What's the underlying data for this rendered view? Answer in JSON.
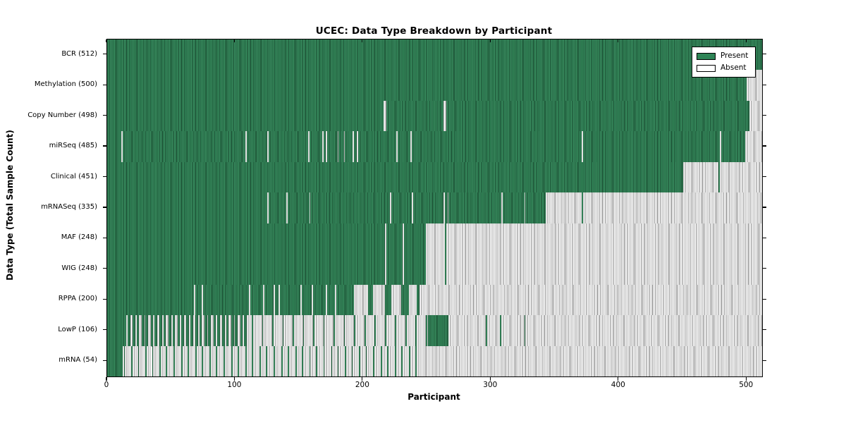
{
  "chart_data": {
    "type": "heatmap",
    "title": "UCEC: Data Type Breakdown by Participant",
    "xlabel": "Participant",
    "ylabel": "Data Type (Total Sample Count)",
    "x_ticks": [
      0,
      100,
      200,
      300,
      400,
      500
    ],
    "x_max": 512,
    "grid": false,
    "legend_position": "upper right",
    "legend": [
      {
        "label": "Present",
        "color": "#2e8456"
      },
      {
        "label": "Absent",
        "color": "#ffffff"
      }
    ],
    "colors": {
      "present_fill": "#2e8456",
      "present_edge": "#16432b",
      "absent_fill": "#ffffff",
      "absent_edge": "#7c7c7c",
      "frame": "#000000"
    },
    "rows": [
      {
        "label": "BCR",
        "total": 512,
        "display": "BCR (512)",
        "absent": []
      },
      {
        "label": "Methylation",
        "total": 500,
        "display": "Methylation (500)",
        "absent": [
          [
            500,
            512
          ]
        ]
      },
      {
        "label": "Copy Number",
        "total": 498,
        "display": "Copy Number (498)",
        "absent": [
          [
            216,
            218
          ],
          [
            263,
            265
          ],
          [
            502,
            512
          ]
        ]
      },
      {
        "label": "miRSeq",
        "total": 485,
        "display": "miRSeq (485)",
        "absent": [
          [
            11,
            12
          ],
          [
            108,
            109
          ],
          [
            125,
            126
          ],
          [
            157,
            158
          ],
          [
            168,
            169
          ],
          [
            171,
            172
          ],
          [
            180,
            181
          ],
          [
            185,
            186
          ],
          [
            192,
            193
          ],
          [
            195,
            196
          ],
          [
            226,
            227
          ],
          [
            237,
            238
          ],
          [
            371,
            372
          ],
          [
            479,
            480
          ],
          [
            499,
            512
          ]
        ]
      },
      {
        "label": "Clinical",
        "total": 451,
        "display": "Clinical (451)",
        "absent": [
          [
            450,
            478
          ],
          [
            479,
            512
          ]
        ]
      },
      {
        "label": "mRNASeq",
        "total": 335,
        "display": "mRNASeq (335)",
        "absent": [
          [
            125,
            126
          ],
          [
            140,
            141
          ],
          [
            158,
            159
          ],
          [
            221,
            222
          ],
          [
            238,
            239
          ],
          [
            263,
            264
          ],
          [
            266,
            267
          ],
          [
            308,
            309
          ],
          [
            326,
            327
          ],
          [
            343,
            371
          ],
          [
            372,
            512
          ]
        ]
      },
      {
        "label": "MAF",
        "total": 248,
        "display": "MAF (248)",
        "absent": [
          [
            217,
            218
          ],
          [
            231,
            232
          ],
          [
            249,
            264
          ],
          [
            265,
            512
          ]
        ]
      },
      {
        "label": "WIG",
        "total": 248,
        "display": "WIG (248)",
        "absent": [
          [
            217,
            218
          ],
          [
            231,
            232
          ],
          [
            249,
            264
          ],
          [
            265,
            512
          ]
        ]
      },
      {
        "label": "RPPA",
        "total": 200,
        "display": "RPPA (200)",
        "present": [
          [
            0,
            68
          ],
          [
            69,
            74
          ],
          [
            75,
            111
          ],
          [
            112,
            122
          ],
          [
            123,
            130
          ],
          [
            131,
            134
          ],
          [
            135,
            151
          ],
          [
            152,
            160
          ],
          [
            161,
            171
          ],
          [
            172,
            178
          ],
          [
            179,
            193
          ],
          [
            204,
            208
          ],
          [
            217,
            222
          ],
          [
            230,
            236
          ],
          [
            242,
            244
          ]
        ]
      },
      {
        "label": "LowP",
        "total": 106,
        "display": "LowP (106)",
        "present": [
          [
            0,
            15
          ],
          [
            16,
            18
          ],
          [
            20,
            22
          ],
          [
            23,
            25
          ],
          [
            27,
            29
          ],
          [
            30,
            32
          ],
          [
            34,
            36
          ],
          [
            37,
            39
          ],
          [
            41,
            43
          ],
          [
            44,
            46
          ],
          [
            48,
            50
          ],
          [
            51,
            53
          ],
          [
            55,
            57
          ],
          [
            58,
            60
          ],
          [
            62,
            64
          ],
          [
            65,
            67
          ],
          [
            69,
            71
          ],
          [
            72,
            74
          ],
          [
            76,
            78
          ],
          [
            79,
            81
          ],
          [
            83,
            85
          ],
          [
            86,
            88
          ],
          [
            90,
            92
          ],
          [
            93,
            95
          ],
          [
            97,
            99
          ],
          [
            100,
            102
          ],
          [
            104,
            106
          ],
          [
            107,
            109
          ],
          [
            113,
            114
          ],
          [
            121,
            122
          ],
          [
            129,
            130
          ],
          [
            137,
            138
          ],
          [
            145,
            146
          ],
          [
            153,
            154
          ],
          [
            161,
            162
          ],
          [
            169,
            170
          ],
          [
            177,
            178
          ],
          [
            185,
            186
          ],
          [
            193,
            194
          ],
          [
            201,
            202
          ],
          [
            209,
            210
          ],
          [
            217,
            218
          ],
          [
            225,
            226
          ],
          [
            233,
            234
          ],
          [
            241,
            242
          ],
          [
            249,
            250
          ],
          [
            251,
            267
          ],
          [
            296,
            297
          ],
          [
            307,
            308
          ],
          [
            326,
            327
          ]
        ]
      },
      {
        "label": "mRNA",
        "total": 54,
        "display": "mRNA (54)",
        "present": [
          [
            0,
            12
          ],
          [
            13,
            14
          ],
          [
            19,
            20
          ],
          [
            24,
            25
          ],
          [
            30,
            31
          ],
          [
            35,
            36
          ],
          [
            41,
            42
          ],
          [
            46,
            47
          ],
          [
            52,
            53
          ],
          [
            58,
            59
          ],
          [
            63,
            64
          ],
          [
            69,
            70
          ],
          [
            74,
            75
          ],
          [
            80,
            81
          ],
          [
            85,
            86
          ],
          [
            91,
            92
          ],
          [
            97,
            98
          ],
          [
            102,
            103
          ],
          [
            108,
            109
          ],
          [
            113,
            114
          ],
          [
            119,
            120
          ],
          [
            124,
            125
          ],
          [
            130,
            131
          ],
          [
            136,
            137
          ],
          [
            141,
            142
          ],
          [
            147,
            148
          ],
          [
            152,
            153
          ],
          [
            158,
            159
          ],
          [
            163,
            164
          ],
          [
            169,
            170
          ],
          [
            175,
            176
          ],
          [
            180,
            181
          ],
          [
            186,
            187
          ],
          [
            191,
            192
          ],
          [
            197,
            198
          ],
          [
            202,
            203
          ],
          [
            208,
            209
          ],
          [
            214,
            215
          ],
          [
            219,
            220
          ],
          [
            225,
            226
          ],
          [
            230,
            231
          ],
          [
            236,
            237
          ],
          [
            241,
            242
          ]
        ]
      }
    ]
  }
}
